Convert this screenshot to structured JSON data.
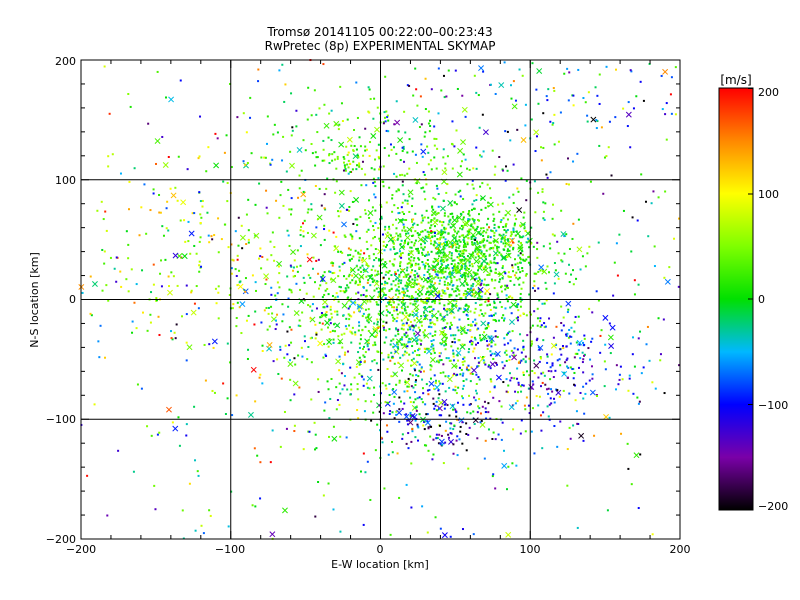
{
  "chart_data": {
    "type": "scatter",
    "title": "Tromsø 20141105 00:22:00–00:23:43",
    "subtitle": "RwPretec (8p) EXPERIMENTAL SKYMAP",
    "xlabel": "E-W location [km]",
    "ylabel": "N-S location [km]",
    "xlim": [
      -200,
      200
    ],
    "ylim": [
      -200,
      200
    ],
    "xticks": [
      "−200",
      "−100",
      "0",
      "100",
      "200"
    ],
    "yticks": [
      "−200",
      "−100",
      "0",
      "100",
      "200"
    ],
    "grid": true,
    "colorbar": {
      "label": "[m/s]",
      "range": [
        -200,
        200
      ],
      "ticks": [
        "200",
        "100",
        "0",
        "−100",
        "−200"
      ],
      "placement": "right"
    },
    "clusters": [
      {
        "cx": 55,
        "cy": 40,
        "sx": 30,
        "sy": 25,
        "v": 15,
        "dv": 25
      },
      {
        "cx": 10,
        "cy": 10,
        "sx": 35,
        "sy": 35,
        "v": 25,
        "dv": 30
      },
      {
        "cx": 30,
        "cy": -30,
        "sx": 45,
        "sy": 40,
        "v": 10,
        "dv": 60
      },
      {
        "cx": 40,
        "cy": -100,
        "sx": 20,
        "sy": 15,
        "v": -90,
        "dv": 90
      },
      {
        "cx": 110,
        "cy": -50,
        "sx": 35,
        "sy": 25,
        "v": -100,
        "dv": 45
      },
      {
        "cx": -10,
        "cy": 120,
        "sx": 35,
        "sy": 25,
        "v": 25,
        "dv": 30
      },
      {
        "cx": 120,
        "cy": 160,
        "sx": 60,
        "sy": 30,
        "v": -60,
        "dv": 90
      },
      {
        "cx": -110,
        "cy": 40,
        "sx": 50,
        "sy": 40,
        "v": 90,
        "dv": 50
      },
      {
        "cx": 0,
        "cy": 0,
        "sx": 120,
        "sy": 110,
        "v": 0,
        "dv": 100
      }
    ]
  }
}
